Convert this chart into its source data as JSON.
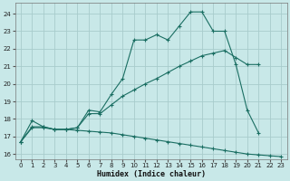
{
  "xlabel": "Humidex (Indice chaleur)",
  "bg_color": "#c8e8e8",
  "grid_color": "#a8cccc",
  "line_color": "#1a6e62",
  "xlim": [
    -0.5,
    23.5
  ],
  "ylim": [
    15.7,
    24.6
  ],
  "xticks": [
    0,
    1,
    2,
    3,
    4,
    5,
    6,
    7,
    8,
    9,
    10,
    11,
    12,
    13,
    14,
    15,
    16,
    17,
    18,
    19,
    20,
    21,
    22,
    23
  ],
  "yticks": [
    16,
    17,
    18,
    19,
    20,
    21,
    22,
    23,
    24
  ],
  "line1_x": [
    0,
    1,
    2,
    3,
    4,
    5,
    6,
    7,
    8,
    9,
    10,
    11,
    12,
    13,
    14,
    15,
    16,
    17,
    18,
    19,
    20,
    21
  ],
  "line1_y": [
    16.7,
    17.9,
    17.55,
    17.4,
    17.4,
    17.5,
    18.5,
    18.4,
    19.4,
    20.3,
    22.5,
    22.5,
    22.8,
    22.5,
    23.3,
    24.1,
    24.1,
    23.0,
    23.0,
    21.1,
    18.5,
    17.2
  ],
  "line2_x": [
    0,
    1,
    2,
    3,
    4,
    5,
    6,
    7,
    8,
    9,
    10,
    11,
    12,
    13,
    14,
    15,
    16,
    17,
    18,
    19,
    20,
    21
  ],
  "line2_y": [
    16.7,
    17.55,
    17.55,
    17.4,
    17.4,
    17.5,
    18.3,
    18.3,
    18.8,
    19.3,
    19.65,
    20.0,
    20.3,
    20.65,
    21.0,
    21.3,
    21.6,
    21.75,
    21.9,
    21.5,
    21.1,
    21.1
  ],
  "line3_x": [
    0,
    1,
    2,
    3,
    4,
    5,
    6,
    7,
    8,
    9,
    10,
    11,
    12,
    13,
    14,
    15,
    16,
    17,
    18,
    19,
    20,
    21,
    22,
    23
  ],
  "line3_y": [
    16.7,
    17.5,
    17.5,
    17.4,
    17.4,
    17.35,
    17.3,
    17.25,
    17.2,
    17.1,
    17.0,
    16.9,
    16.8,
    16.7,
    16.6,
    16.5,
    16.4,
    16.3,
    16.2,
    16.1,
    16.0,
    15.95,
    15.9,
    15.85
  ]
}
